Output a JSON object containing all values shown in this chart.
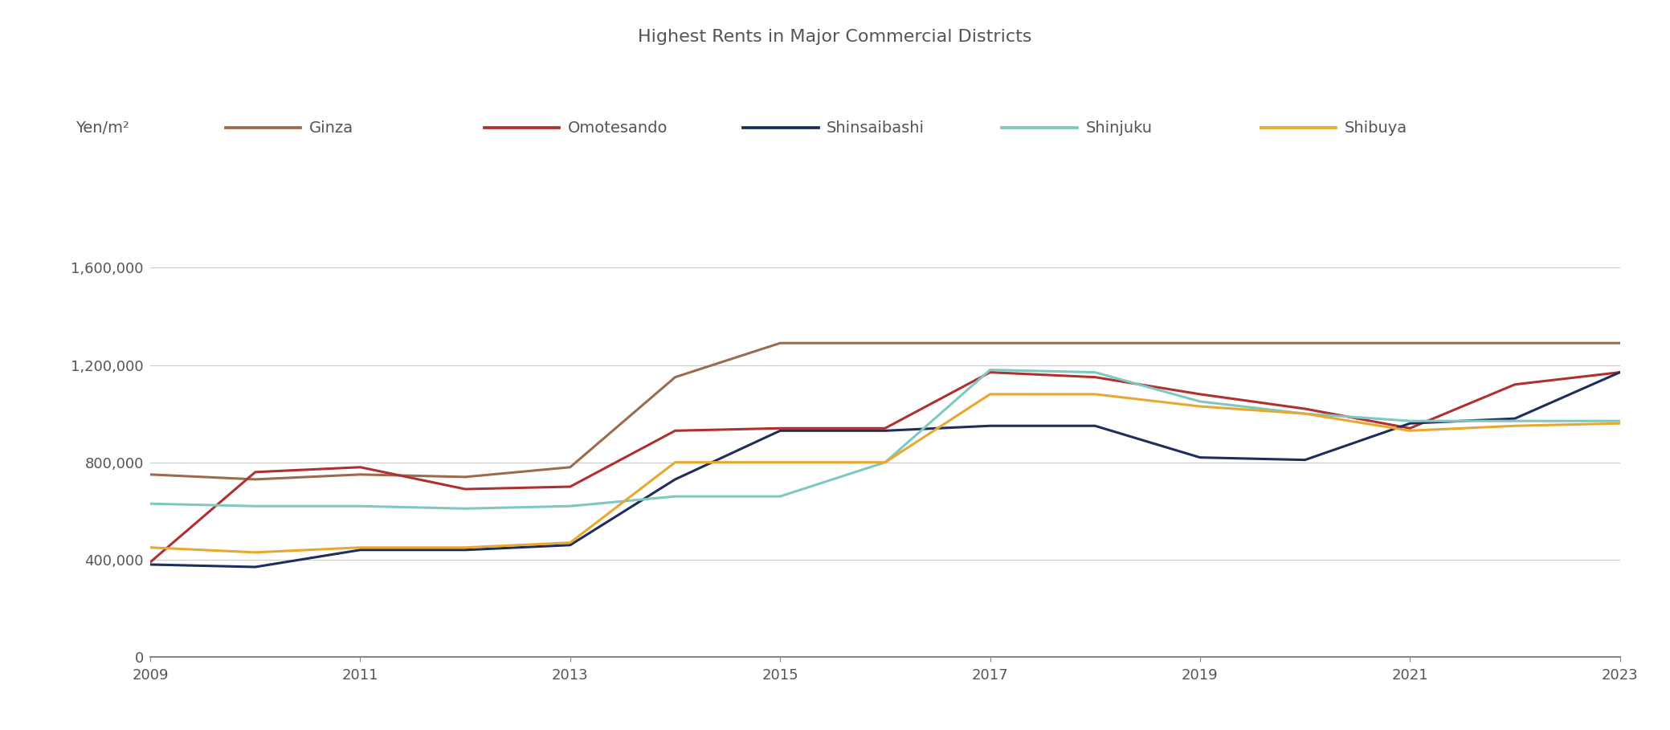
{
  "title": "Highest Rents in Major Commercial Districts",
  "ylabel": "Yen/m²",
  "years": [
    2009,
    2010,
    2011,
    2012,
    2013,
    2014,
    2015,
    2016,
    2017,
    2018,
    2019,
    2020,
    2021,
    2022,
    2023
  ],
  "series": {
    "Ginza": {
      "color": "#9C6B4E",
      "data": [
        750000,
        730000,
        750000,
        740000,
        780000,
        1150000,
        1290000,
        1290000,
        1290000,
        1290000,
        1290000,
        1290000,
        1290000,
        1290000,
        1290000
      ]
    },
    "Omotesando": {
      "color": "#B03030",
      "data": [
        390000,
        760000,
        780000,
        690000,
        700000,
        930000,
        940000,
        940000,
        1170000,
        1150000,
        1080000,
        1020000,
        940000,
        1120000,
        1170000
      ]
    },
    "Shinsaibashi": {
      "color": "#1E2D5A",
      "data": [
        380000,
        370000,
        440000,
        440000,
        460000,
        730000,
        930000,
        930000,
        950000,
        950000,
        820000,
        810000,
        960000,
        980000,
        1170000
      ]
    },
    "Shinjuku": {
      "color": "#7EC8C0",
      "data": [
        630000,
        620000,
        620000,
        610000,
        620000,
        660000,
        660000,
        800000,
        1180000,
        1170000,
        1050000,
        1000000,
        970000,
        970000,
        970000
      ]
    },
    "Shibuya": {
      "color": "#E8A830",
      "data": [
        450000,
        430000,
        450000,
        450000,
        470000,
        800000,
        800000,
        800000,
        1080000,
        1080000,
        1030000,
        1000000,
        930000,
        950000,
        960000
      ]
    }
  },
  "ylim": [
    0,
    1800000
  ],
  "yticks": [
    0,
    400000,
    800000,
    1200000,
    1600000
  ],
  "ytick_labels": [
    "0",
    "400,000",
    "800,000",
    "1,200,000",
    "1,600,000"
  ],
  "xticks": [
    2009,
    2011,
    2013,
    2015,
    2017,
    2019,
    2021,
    2023
  ],
  "background_color": "#FFFFFF",
  "grid_color": "#CCCCCC",
  "title_fontsize": 16,
  "label_fontsize": 14,
  "tick_fontsize": 13,
  "legend_fontsize": 14,
  "line_width": 2.2,
  "text_color": "#555555"
}
